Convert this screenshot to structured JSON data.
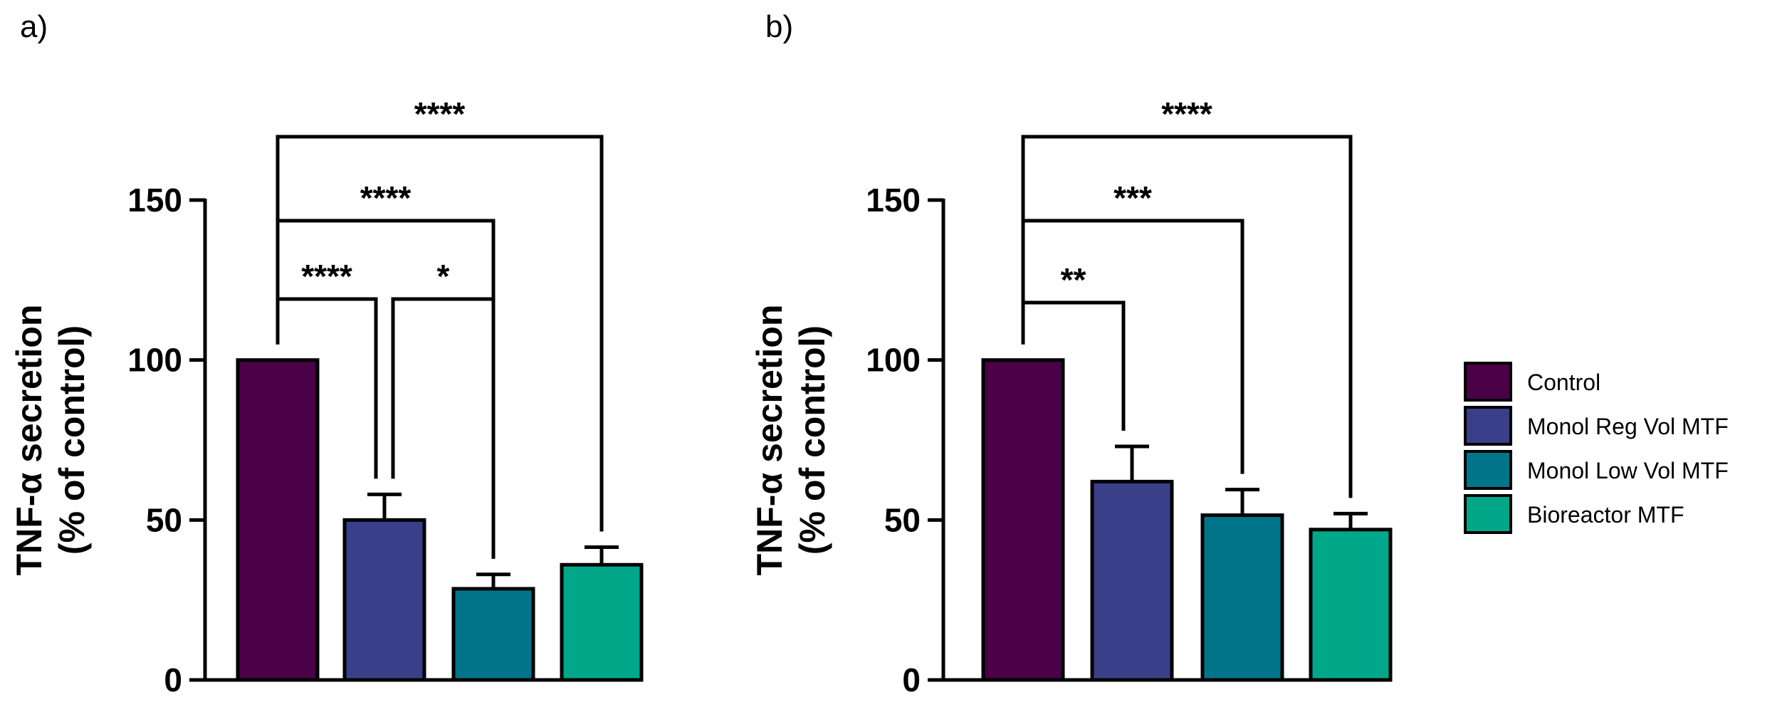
{
  "chart_data": [
    {
      "type": "bar",
      "panel_label": "a)",
      "categories": [
        "Control",
        "Monol Reg Vol MTF",
        "Monol Low Vol MTF",
        "Bioreactor MTF"
      ],
      "values": [
        100,
        50,
        28.5,
        36
      ],
      "errors": [
        0,
        8,
        4.5,
        5.5
      ],
      "ylabel_line1": "TNF-α secretion",
      "ylabel_line2": "(% of control)",
      "ylim": [
        0,
        150
      ],
      "yticks": [
        0,
        50,
        100,
        150
      ],
      "ytick_labels": [
        "0",
        "50",
        "100",
        "150"
      ],
      "comparisons": [
        {
          "from": 0,
          "to": 1,
          "label": "****",
          "level": 1
        },
        {
          "from": 1,
          "to": 2,
          "label": "*",
          "level": 1
        },
        {
          "from": 0,
          "to": 2,
          "label": "****",
          "level": 2
        },
        {
          "from": 0,
          "to": 3,
          "label": "****",
          "level": 3
        }
      ]
    },
    {
      "type": "bar",
      "panel_label": "b)",
      "categories": [
        "Control",
        "Monol Reg Vol MTF",
        "Monol Low Vol MTF",
        "Bioreactor MTF"
      ],
      "values": [
        100,
        62,
        51.5,
        47
      ],
      "errors": [
        0,
        11,
        8,
        5
      ],
      "ylabel_line1": "TNF-α secretion",
      "ylabel_line2": "(% of control)",
      "ylim": [
        0,
        150
      ],
      "yticks": [
        0,
        50,
        100,
        150
      ],
      "ytick_labels": [
        "0",
        "50",
        "100",
        "150"
      ],
      "comparisons": [
        {
          "from": 0,
          "to": 1,
          "label": "**",
          "level": 1
        },
        {
          "from": 0,
          "to": 2,
          "label": "***",
          "level": 2
        },
        {
          "from": 0,
          "to": 3,
          "label": "****",
          "level": 3
        }
      ]
    }
  ],
  "legend": {
    "entries": [
      {
        "label": "Control",
        "color": "#4a0046"
      },
      {
        "label": "Monol Reg Vol MTF",
        "color": "#3b3f8a"
      },
      {
        "label": "Monol Low Vol MTF",
        "color": "#00758a"
      },
      {
        "label": "Bioreactor MTF",
        "color": "#00a88a"
      }
    ]
  }
}
